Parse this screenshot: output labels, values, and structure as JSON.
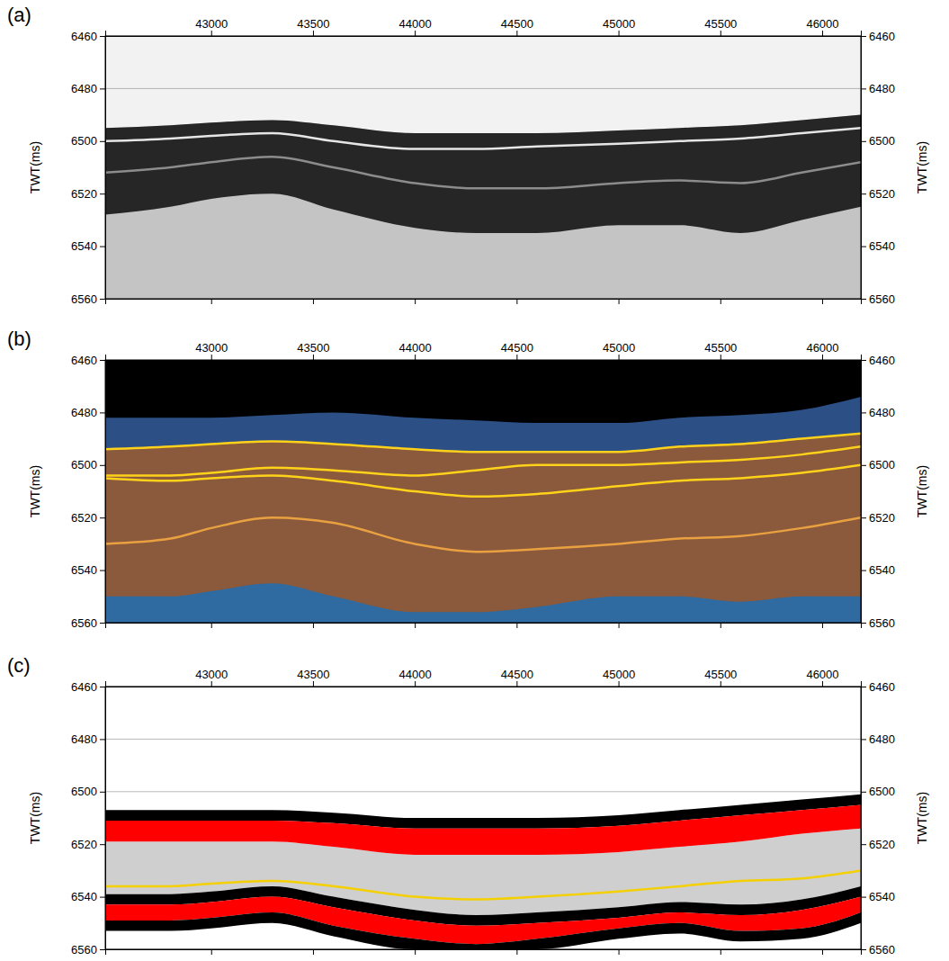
{
  "chart_data": [
    {
      "type": "area",
      "panel_label": "(a)",
      "y_label": "TWT(ms)",
      "color": "#f2f2f2",
      "grid": true,
      "xlim": [
        42480,
        46190
      ],
      "xticks": [
        43000,
        43500,
        44000,
        44500,
        45000,
        45500,
        46000
      ],
      "ylim": [
        6460,
        6560
      ],
      "yticks": [
        6460,
        6480,
        6500,
        6520,
        6540,
        6560
      ],
      "x": [
        42480,
        42800,
        43000,
        43300,
        43600,
        44000,
        44300,
        44600,
        45000,
        45300,
        45600,
        45900,
        46190
      ],
      "series": [
        {
          "type": "area",
          "color": "#c4c4c4",
          "values": [
            6495,
            6494,
            6493,
            6492,
            6494,
            6497,
            6497,
            6497,
            6496,
            6495,
            6494,
            6492,
            6490
          ],
          "lower": [
            6560,
            6560,
            6560,
            6560,
            6560,
            6560,
            6560,
            6560,
            6560,
            6560,
            6560,
            6560,
            6560
          ]
        },
        {
          "type": "area",
          "color": "#262626",
          "values": [
            6495,
            6494,
            6493,
            6492,
            6494,
            6497,
            6497,
            6497,
            6496,
            6495,
            6494,
            6492,
            6490
          ],
          "lower": [
            6528,
            6525,
            6522,
            6520,
            6526,
            6533,
            6535,
            6535,
            6532,
            6532,
            6535,
            6530,
            6525
          ]
        },
        {
          "type": "line",
          "color": "#e6e6e6",
          "values": [
            6500,
            6499,
            6498,
            6497,
            6500,
            6503,
            6503,
            6502,
            6501,
            6500,
            6499,
            6497,
            6495
          ]
        },
        {
          "type": "line",
          "color": "#8c8c8c",
          "values": [
            6512,
            6510,
            6508,
            6506,
            6510,
            6516,
            6518,
            6518,
            6516,
            6515,
            6516,
            6512,
            6508
          ]
        }
      ]
    },
    {
      "type": "area",
      "panel_label": "(b)",
      "y_label": "TWT(ms)",
      "color": "#000000",
      "grid": false,
      "xlim": [
        42480,
        46190
      ],
      "xticks": [
        43000,
        43500,
        44000,
        44500,
        45000,
        45500,
        46000
      ],
      "ylim": [
        6460,
        6560
      ],
      "yticks": [
        6460,
        6480,
        6500,
        6520,
        6540,
        6560
      ],
      "x": [
        42480,
        42800,
        43000,
        43300,
        43600,
        44000,
        44300,
        44600,
        45000,
        45300,
        45600,
        45900,
        46190
      ],
      "series": [
        {
          "type": "area",
          "color": "#2c4f86",
          "values": [
            6482,
            6482,
            6482,
            6481,
            6480,
            6482,
            6483,
            6484,
            6484,
            6482,
            6481,
            6479,
            6474
          ],
          "lower": [
            6494,
            6493,
            6492,
            6491,
            6492,
            6494,
            6495,
            6495,
            6495,
            6493,
            6492,
            6490,
            6488
          ]
        },
        {
          "type": "area",
          "color": "#8b5a3c",
          "values": [
            6494,
            6493,
            6492,
            6491,
            6492,
            6494,
            6495,
            6495,
            6495,
            6493,
            6492,
            6490,
            6488
          ],
          "lower": [
            6560,
            6560,
            6560,
            6560,
            6560,
            6560,
            6560,
            6560,
            6560,
            6560,
            6560,
            6560,
            6560
          ]
        },
        {
          "type": "area",
          "color": "#2f6aa0",
          "values": [
            6550,
            6550,
            6548,
            6545,
            6550,
            6556,
            6556,
            6554,
            6550,
            6550,
            6552,
            6550,
            6550
          ],
          "lower": [
            6560,
            6560,
            6560,
            6560,
            6560,
            6560,
            6560,
            6560,
            6560,
            6560,
            6560,
            6560,
            6560
          ]
        },
        {
          "type": "line",
          "color": "#ffd21a",
          "values": [
            6494,
            6493,
            6492,
            6491,
            6492,
            6494,
            6495,
            6495,
            6495,
            6493,
            6492,
            6490,
            6488
          ]
        },
        {
          "type": "line",
          "color": "#ffd21a",
          "values": [
            6504,
            6504,
            6503,
            6501,
            6502,
            6504,
            6502,
            6500,
            6500,
            6499,
            6498,
            6496,
            6493
          ]
        },
        {
          "type": "line",
          "color": "#ffd21a",
          "values": [
            6505,
            6506,
            6505,
            6504,
            6506,
            6510,
            6512,
            6511,
            6508,
            6506,
            6505,
            6503,
            6500
          ]
        },
        {
          "type": "line",
          "color": "#e8a040",
          "values": [
            6530,
            6528,
            6524,
            6520,
            6522,
            6530,
            6533,
            6532,
            6530,
            6528,
            6527,
            6524,
            6520
          ]
        }
      ]
    },
    {
      "type": "area",
      "panel_label": "(c)",
      "y_label": "TWT(ms)",
      "color": "#ffffff",
      "grid": true,
      "xlim": [
        42480,
        46190
      ],
      "xticks": [
        43000,
        43500,
        44000,
        44500,
        45000,
        45500,
        46000
      ],
      "ylim": [
        6460,
        6560
      ],
      "yticks": [
        6460,
        6480,
        6500,
        6520,
        6540,
        6560
      ],
      "x": [
        42480,
        42800,
        43000,
        43300,
        43600,
        44000,
        44300,
        44600,
        45000,
        45300,
        45600,
        45900,
        46190
      ],
      "series": [
        {
          "type": "area",
          "color": "#cfcfcf",
          "values": [
            6519,
            6519,
            6519,
            6519,
            6521,
            6524,
            6524,
            6524,
            6523,
            6521,
            6519,
            6516,
            6514
          ],
          "lower": [
            6539,
            6539,
            6538,
            6536,
            6540,
            6545,
            6547,
            6546,
            6544,
            6542,
            6543,
            6541,
            6536
          ]
        },
        {
          "type": "area",
          "color": "#000000",
          "values": [
            6507,
            6507,
            6507,
            6507,
            6508,
            6510,
            6510,
            6510,
            6509,
            6507,
            6505,
            6503,
            6501
          ],
          "lower": [
            6511,
            6511,
            6511,
            6511,
            6512,
            6514,
            6514,
            6514,
            6513,
            6511,
            6509,
            6507,
            6505
          ]
        },
        {
          "type": "area",
          "color": "#ff0000",
          "values": [
            6511,
            6511,
            6511,
            6511,
            6512,
            6514,
            6514,
            6514,
            6513,
            6511,
            6509,
            6507,
            6505
          ],
          "lower": [
            6519,
            6519,
            6519,
            6519,
            6521,
            6524,
            6524,
            6524,
            6523,
            6521,
            6519,
            6516,
            6514
          ]
        },
        {
          "type": "line",
          "color": "#f5d000",
          "values": [
            6536,
            6536,
            6535,
            6534,
            6536,
            6540,
            6541,
            6540,
            6538,
            6536,
            6534,
            6533,
            6530
          ]
        },
        {
          "type": "area",
          "color": "#000000",
          "values": [
            6539,
            6539,
            6538,
            6536,
            6540,
            6545,
            6547,
            6546,
            6544,
            6542,
            6543,
            6541,
            6536
          ],
          "lower": [
            6543,
            6543,
            6542,
            6540,
            6544,
            6549,
            6551,
            6550,
            6548,
            6546,
            6547,
            6545,
            6540
          ]
        },
        {
          "type": "area",
          "color": "#ff0000",
          "values": [
            6543,
            6543,
            6542,
            6540,
            6544,
            6549,
            6551,
            6550,
            6548,
            6546,
            6547,
            6545,
            6540
          ],
          "lower": [
            6549,
            6549,
            6548,
            6546,
            6551,
            6556,
            6558,
            6556,
            6552,
            6550,
            6553,
            6552,
            6546
          ]
        },
        {
          "type": "area",
          "color": "#000000",
          "values": [
            6549,
            6549,
            6548,
            6546,
            6551,
            6556,
            6558,
            6556,
            6552,
            6550,
            6553,
            6552,
            6546
          ],
          "lower": [
            6553,
            6553,
            6552,
            6550,
            6555,
            6560,
            6560,
            6560,
            6556,
            6554,
            6557,
            6556,
            6550
          ]
        }
      ]
    }
  ]
}
